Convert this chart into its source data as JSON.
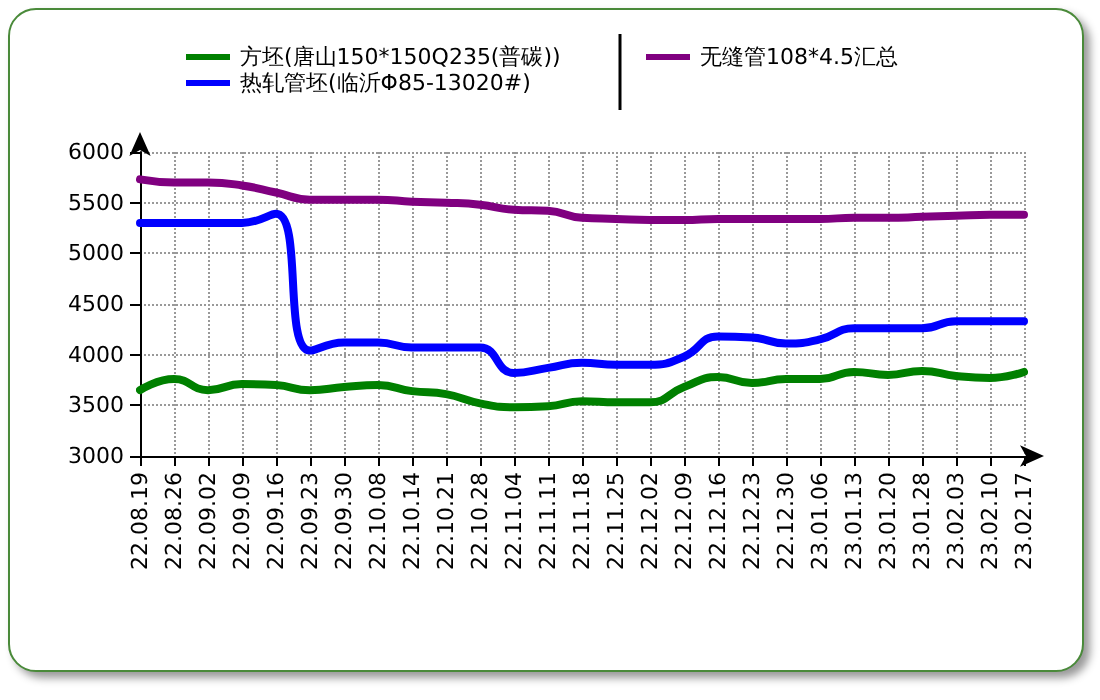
{
  "chart_data": {
    "type": "line",
    "categories": [
      "22.08.19",
      "22.08.26",
      "22.09.02",
      "22.09.09",
      "22.09.16",
      "22.09.23",
      "22.09.30",
      "22.10.08",
      "22.10.14",
      "22.10.21",
      "22.10.28",
      "22.11.04",
      "22.11.11",
      "22.11.18",
      "22.11.25",
      "22.12.02",
      "22.12.09",
      "22.12.16",
      "22.12.23",
      "22.12.30",
      "23.01.06",
      "23.01.13",
      "23.01.20",
      "23.01.28",
      "23.02.03",
      "23.02.10",
      "23.02.17"
    ],
    "series": [
      {
        "name": "方坯(唐山150*150Q235(普碳))",
        "color": "#008000",
        "values": [
          3650,
          3760,
          3650,
          3710,
          3700,
          3650,
          3680,
          3700,
          3640,
          3610,
          3520,
          3480,
          3490,
          3540,
          3530,
          3530,
          3680,
          3780,
          3720,
          3760,
          3760,
          3830,
          3800,
          3840,
          3790,
          3770,
          3830
        ]
      },
      {
        "name": "热轧管坯(临沂Φ85-13020#)",
        "color": "#0000ff",
        "values": [
          5300,
          5300,
          5300,
          5300,
          5390,
          4040,
          4120,
          4120,
          4070,
          4070,
          4070,
          3820,
          3870,
          3920,
          3900,
          3900,
          3980,
          4180,
          4170,
          4110,
          4150,
          4260,
          4260,
          4260,
          4330,
          4330,
          4330
        ]
      },
      {
        "name": "无缝管108*4.5汇总",
        "color": "#800080",
        "values": [
          5730,
          5700,
          5700,
          5670,
          5600,
          5530,
          5530,
          5530,
          5510,
          5500,
          5480,
          5430,
          5420,
          5350,
          5340,
          5330,
          5330,
          5340,
          5340,
          5340,
          5340,
          5350,
          5350,
          5360,
          5370,
          5380,
          5380
        ]
      }
    ],
    "ylim": [
      3000,
      6000
    ],
    "yticks": [
      3000,
      3500,
      4000,
      4500,
      5000,
      5500,
      6000
    ],
    "grid": true,
    "legend": "top",
    "marker": "none",
    "line_style": "solid"
  }
}
